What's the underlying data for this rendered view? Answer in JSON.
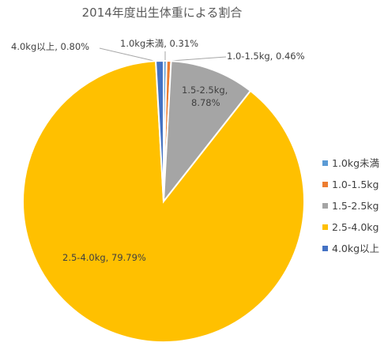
{
  "chart_data": {
    "type": "pie",
    "title": "2014年度出生体重による割合",
    "categories": [
      "1.0kg未満",
      "1.0-1.5kg",
      "1.5-2.5kg",
      "2.5-4.0kg",
      "4.0kg以上"
    ],
    "values": [
      0.31,
      0.46,
      8.78,
      79.79,
      0.8
    ],
    "value_labels": [
      "0.31%",
      "0.46%",
      "8.78%",
      "79.79%",
      "0.80%"
    ],
    "colors": [
      "#5b9bd5",
      "#ed7d31",
      "#a5a5a5",
      "#ffc000",
      "#4472c4"
    ],
    "legend_position": "right",
    "unit": "%"
  }
}
